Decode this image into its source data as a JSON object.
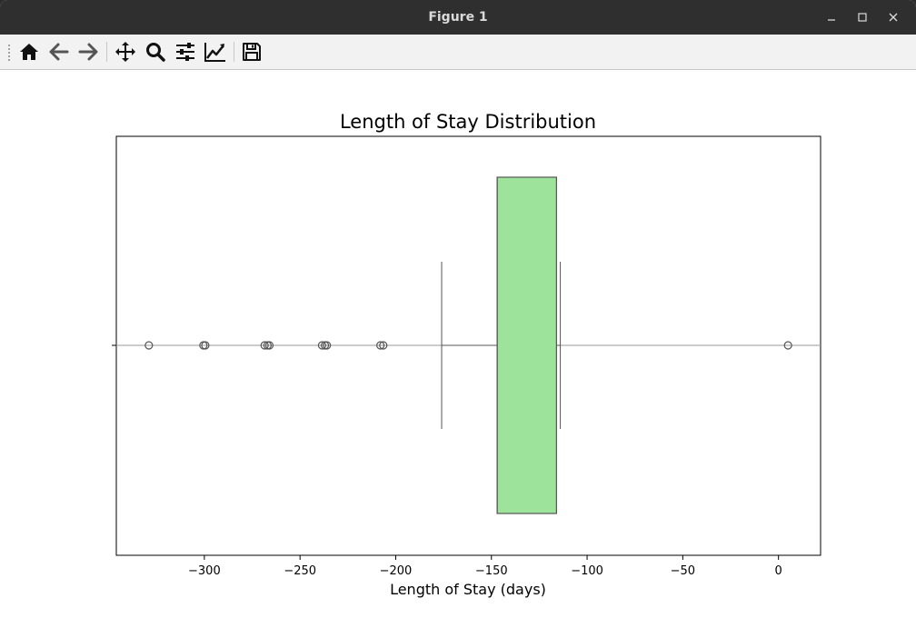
{
  "window": {
    "title": "Figure 1",
    "buttons": [
      "minimize",
      "maximize",
      "close"
    ]
  },
  "toolbar": {
    "tools": [
      {
        "name": "home-icon",
        "tooltip": "Reset original view"
      },
      {
        "name": "back-arrow-icon",
        "tooltip": "Back to previous view"
      },
      {
        "name": "forward-arrow-icon",
        "tooltip": "Forward to next view"
      },
      {
        "name": "pan-icon",
        "tooltip": "Pan axes"
      },
      {
        "name": "zoom-icon",
        "tooltip": "Zoom to rectangle"
      },
      {
        "name": "configure-subplots-icon",
        "tooltip": "Configure subplots"
      },
      {
        "name": "edit-axis-icon",
        "tooltip": "Edit axis, curve and image parameters"
      },
      {
        "name": "save-icon",
        "tooltip": "Save the figure"
      }
    ]
  },
  "chart_data": {
    "type": "boxplot",
    "orientation": "horizontal",
    "title": "Length of Stay Distribution",
    "xlabel": "Length of Stay (days)",
    "ylabel": "",
    "xlim": [
      -346,
      22
    ],
    "xticks": [
      -300,
      -250,
      -200,
      -150,
      -100,
      -50,
      0
    ],
    "xtick_labels": [
      "−300",
      "−250",
      "−200",
      "−150",
      "−100",
      "−50",
      "0"
    ],
    "grid": false,
    "legend": "none",
    "box": {
      "whisker_low": -176,
      "q1": -147,
      "median": -147,
      "q3": -116,
      "whisker_high": -114,
      "fill_color": "#9de39b",
      "edge_color": "#555555"
    },
    "outliers": [
      -329,
      -300.5,
      -299.5,
      -268.5,
      -267,
      -266,
      -238.5,
      -237,
      -236,
      -208,
      -206.5,
      5
    ],
    "outlier_color": "#555555"
  }
}
